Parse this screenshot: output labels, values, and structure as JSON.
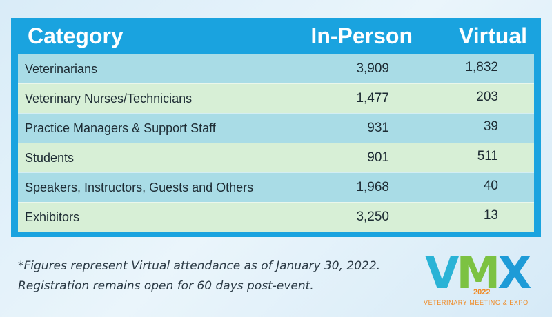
{
  "chart_data": {
    "type": "table",
    "columns": [
      "Category",
      "In-Person",
      "Virtual"
    ],
    "rows": [
      {
        "category": "Veterinarians",
        "in_person": "3,909",
        "virtual": "1,832"
      },
      {
        "category": "Veterinary Nurses/Technicians",
        "in_person": "1,477",
        "virtual": "203"
      },
      {
        "category": "Practice Managers & Support Staff",
        "in_person": "931",
        "virtual": "39"
      },
      {
        "category": "Students",
        "in_person": "901",
        "virtual": "511"
      },
      {
        "category": "Speakers, Instructors, Guests and Others",
        "in_person": "1,968",
        "virtual": "40"
      },
      {
        "category": "Exhibitors",
        "in_person": "3,250",
        "virtual": "13"
      }
    ]
  },
  "footnote": {
    "line1": "*Figures represent Virtual attendance as of January 30, 2022.",
    "line2": "Registration remains open for 60 days post-event."
  },
  "logo": {
    "letters": [
      "V",
      "M",
      "X"
    ],
    "year": "2022",
    "tagline": "VETERINARY MEETING & EXPO"
  },
  "colors": {
    "header_bg": "#1aa3df",
    "row_blue": "#a9dce6",
    "row_green": "#d7efd6",
    "logo_orange": "#f08a24"
  }
}
